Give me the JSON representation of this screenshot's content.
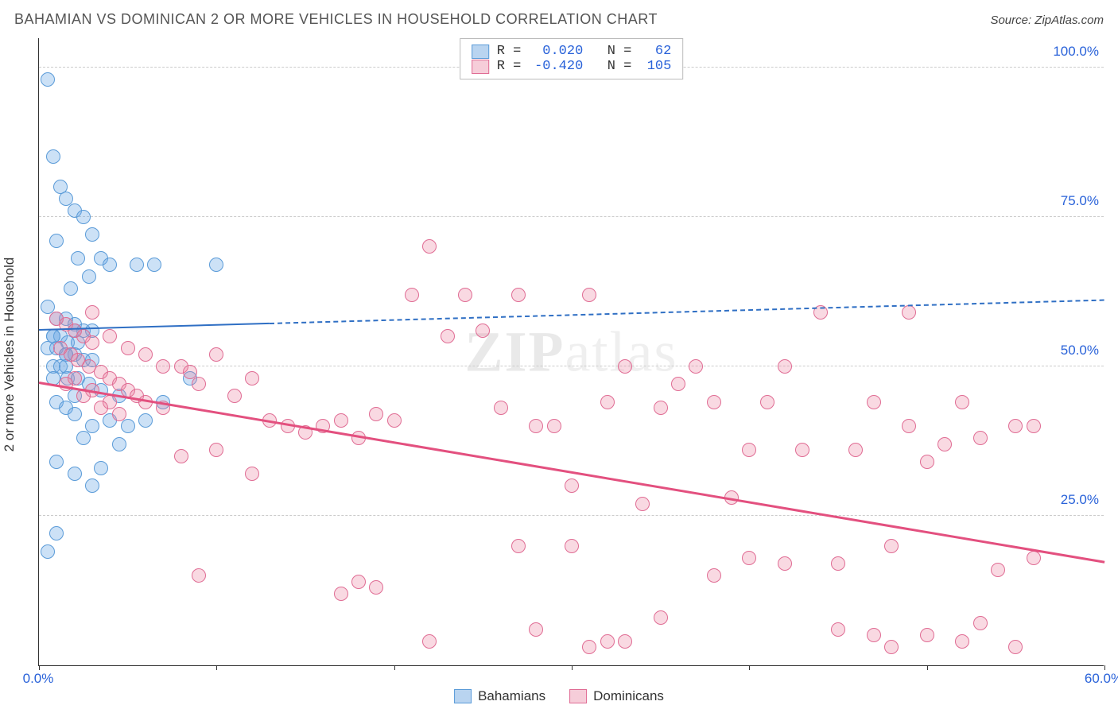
{
  "title": "BAHAMIAN VS DOMINICAN 2 OR MORE VEHICLES IN HOUSEHOLD CORRELATION CHART",
  "source": "Source: ZipAtlas.com",
  "ylabel": "2 or more Vehicles in Household",
  "watermark_a": "ZIP",
  "watermark_b": "atlas",
  "chart": {
    "type": "scatter",
    "xlim": [
      0,
      60
    ],
    "ylim": [
      0,
      105
    ],
    "ytick_values": [
      25,
      50,
      75,
      100
    ],
    "ytick_labels": [
      "25.0%",
      "50.0%",
      "75.0%",
      "100.0%"
    ],
    "xtick_values": [
      0,
      10,
      20,
      30,
      40,
      50,
      60
    ],
    "xtick_labels": {
      "0": "0.0%",
      "60": "60.0%"
    },
    "grid_color": "#cccccc",
    "background_color": "#ffffff",
    "marker_radius": 9,
    "marker_stroke_width": 1.5,
    "series": [
      {
        "name": "Bahamians",
        "color_fill": "rgba(110,170,230,0.35)",
        "color_stroke": "#5a9bd8",
        "swatch_fill": "#b9d4f0",
        "swatch_stroke": "#5a9bd8",
        "R": "0.020",
        "N": "62",
        "trend": {
          "x0": 0,
          "y0": 56,
          "x1": 60,
          "y1": 61,
          "solid_until_x": 13,
          "color": "#2f6fc4",
          "width": 2.5
        },
        "points": [
          [
            0.5,
            98
          ],
          [
            0.8,
            85
          ],
          [
            1.2,
            80
          ],
          [
            1.5,
            78
          ],
          [
            2.0,
            76
          ],
          [
            2.5,
            75
          ],
          [
            3.0,
            72
          ],
          [
            1.0,
            71
          ],
          [
            2.2,
            68
          ],
          [
            3.5,
            68
          ],
          [
            4.0,
            67
          ],
          [
            5.5,
            67
          ],
          [
            6.5,
            67
          ],
          [
            10.0,
            67
          ],
          [
            2.8,
            65
          ],
          [
            1.8,
            63
          ],
          [
            0.5,
            60
          ],
          [
            1.0,
            58
          ],
          [
            1.5,
            58
          ],
          [
            2.0,
            57
          ],
          [
            2.5,
            56
          ],
          [
            3.0,
            56
          ],
          [
            0.8,
            55
          ],
          [
            1.2,
            55
          ],
          [
            1.6,
            54
          ],
          [
            2.2,
            54
          ],
          [
            0.5,
            53
          ],
          [
            1.0,
            53
          ],
          [
            1.5,
            52
          ],
          [
            2.0,
            52
          ],
          [
            2.5,
            51
          ],
          [
            3.0,
            51
          ],
          [
            0.8,
            50
          ],
          [
            1.2,
            50
          ],
          [
            1.6,
            48
          ],
          [
            2.2,
            48
          ],
          [
            2.8,
            47
          ],
          [
            3.5,
            46
          ],
          [
            4.5,
            45
          ],
          [
            1.0,
            44
          ],
          [
            1.5,
            43
          ],
          [
            2.0,
            42
          ],
          [
            4.0,
            41
          ],
          [
            3.0,
            40
          ],
          [
            5.0,
            40
          ],
          [
            6.0,
            41
          ],
          [
            7.0,
            44
          ],
          [
            8.5,
            48
          ],
          [
            2.5,
            38
          ],
          [
            4.5,
            37
          ],
          [
            1.0,
            34
          ],
          [
            2.0,
            32
          ],
          [
            3.5,
            33
          ],
          [
            1.5,
            52
          ],
          [
            0.8,
            48
          ],
          [
            2.0,
            45
          ],
          [
            3.0,
            30
          ],
          [
            0.5,
            19
          ],
          [
            1.0,
            22
          ],
          [
            1.5,
            50
          ],
          [
            2.0,
            56
          ],
          [
            0.8,
            55
          ]
        ]
      },
      {
        "name": "Dominicans",
        "color_fill": "rgba(235,130,160,0.30)",
        "color_stroke": "#e06c94",
        "swatch_fill": "#f6cdd9",
        "swatch_stroke": "#e06c94",
        "R": "-0.420",
        "N": "105",
        "trend": {
          "x0": 0,
          "y0": 47,
          "x1": 60,
          "y1": 17,
          "solid_until_x": 60,
          "color": "#e3507f",
          "width": 3
        },
        "points": [
          [
            1.0,
            58
          ],
          [
            1.5,
            57
          ],
          [
            2.0,
            56
          ],
          [
            2.5,
            55
          ],
          [
            3.0,
            54
          ],
          [
            1.2,
            53
          ],
          [
            1.8,
            52
          ],
          [
            2.2,
            51
          ],
          [
            2.8,
            50
          ],
          [
            3.5,
            49
          ],
          [
            4.0,
            48
          ],
          [
            4.5,
            47
          ],
          [
            5.0,
            46
          ],
          [
            5.5,
            45
          ],
          [
            6.0,
            44
          ],
          [
            7.0,
            43
          ],
          [
            8.0,
            50
          ],
          [
            8.5,
            49
          ],
          [
            9.0,
            47
          ],
          [
            10.0,
            52
          ],
          [
            11.0,
            45
          ],
          [
            12.0,
            48
          ],
          [
            13.0,
            41
          ],
          [
            14.0,
            40
          ],
          [
            15.0,
            39
          ],
          [
            16.0,
            40
          ],
          [
            17.0,
            41
          ],
          [
            18.0,
            38
          ],
          [
            19.0,
            42
          ],
          [
            20.0,
            41
          ],
          [
            21.0,
            62
          ],
          [
            22.0,
            70
          ],
          [
            23.0,
            55
          ],
          [
            24.0,
            62
          ],
          [
            25.0,
            56
          ],
          [
            26.0,
            43
          ],
          [
            27.0,
            62
          ],
          [
            28.0,
            40
          ],
          [
            29.0,
            40
          ],
          [
            30.0,
            30
          ],
          [
            31.0,
            62
          ],
          [
            32.0,
            44
          ],
          [
            33.0,
            50
          ],
          [
            34.0,
            27
          ],
          [
            35.0,
            43
          ],
          [
            36.0,
            47
          ],
          [
            37.0,
            50
          ],
          [
            38.0,
            44
          ],
          [
            39.0,
            28
          ],
          [
            40.0,
            36
          ],
          [
            41.0,
            44
          ],
          [
            42.0,
            50
          ],
          [
            43.0,
            36
          ],
          [
            44.0,
            59
          ],
          [
            45.0,
            17
          ],
          [
            46.0,
            36
          ],
          [
            47.0,
            44
          ],
          [
            48.0,
            20
          ],
          [
            49.0,
            40
          ],
          [
            50.0,
            34
          ],
          [
            51.0,
            37
          ],
          [
            52.0,
            44
          ],
          [
            53.0,
            38
          ],
          [
            54.0,
            16
          ],
          [
            55.0,
            40
          ],
          [
            56.0,
            18
          ],
          [
            8.0,
            35
          ],
          [
            10.0,
            36
          ],
          [
            12.0,
            32
          ],
          [
            9.0,
            15
          ],
          [
            17.0,
            12
          ],
          [
            18.0,
            14
          ],
          [
            19.0,
            13
          ],
          [
            28.0,
            6
          ],
          [
            30.0,
            20
          ],
          [
            32.0,
            4
          ],
          [
            33.0,
            4
          ],
          [
            35.0,
            8
          ],
          [
            38.0,
            15
          ],
          [
            40.0,
            18
          ],
          [
            42.0,
            17
          ],
          [
            45.0,
            6
          ],
          [
            47.0,
            5
          ],
          [
            48.0,
            3
          ],
          [
            50.0,
            5
          ],
          [
            52.0,
            4
          ],
          [
            53.0,
            7
          ],
          [
            55.0,
            3
          ],
          [
            3.0,
            59
          ],
          [
            4.0,
            55
          ],
          [
            5.0,
            53
          ],
          [
            6.0,
            52
          ],
          [
            7.0,
            50
          ],
          [
            2.0,
            48
          ],
          [
            3.0,
            46
          ],
          [
            4.0,
            44
          ],
          [
            1.5,
            47
          ],
          [
            2.5,
            45
          ],
          [
            3.5,
            43
          ],
          [
            4.5,
            42
          ],
          [
            22.0,
            4
          ],
          [
            56.0,
            40
          ],
          [
            49.0,
            59
          ],
          [
            31.0,
            3
          ],
          [
            27.0,
            20
          ]
        ]
      }
    ]
  },
  "legend": {
    "items": [
      {
        "label": "Bahamians"
      },
      {
        "label": "Dominicans"
      }
    ]
  }
}
